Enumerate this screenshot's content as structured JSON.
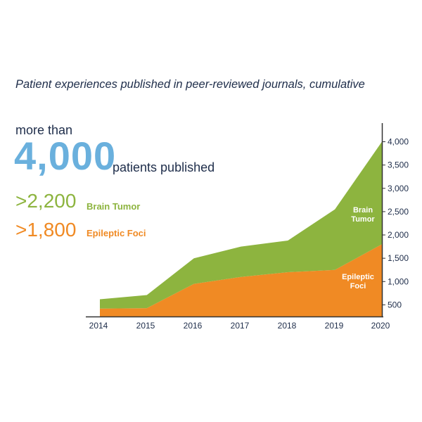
{
  "chart_data": {
    "type": "area",
    "title": "Patient experiences published in peer-reviewed journals, cumulative",
    "xlabel": "",
    "ylabel": "",
    "x": [
      "2014",
      "2015",
      "2016",
      "2017",
      "2018",
      "2019",
      "2020"
    ],
    "ylim": [
      250,
      4400
    ],
    "y_ticks": [
      "500",
      "1,000",
      "1,500",
      "2,000",
      "2,500",
      "3,000",
      "3,500",
      "4,000"
    ],
    "y_tick_values": [
      500,
      1000,
      1500,
      2000,
      2500,
      3000,
      3500,
      4000
    ],
    "y_axis_position": "right",
    "grid": false,
    "stacked": true,
    "series": [
      {
        "name": "Epileptic Foci",
        "color": "#f08a24",
        "values": [
          420,
          430,
          950,
          1100,
          1200,
          1250,
          1800
        ]
      },
      {
        "name": "Brain Tumor",
        "color": "#8db43f",
        "values": [
          200,
          280,
          550,
          650,
          680,
          1300,
          2200
        ]
      }
    ],
    "series_labels": [
      {
        "series": "Brain Tumor",
        "lines": [
          "Brain",
          "Tumor"
        ]
      },
      {
        "series": "Epileptic Foci",
        "lines": [
          "Epileptic",
          "Foci"
        ]
      }
    ]
  },
  "callout": {
    "prefix": "more than",
    "total": "4,000",
    "suffix": "patients published",
    "total_color": "#6ab0dd",
    "stats": [
      {
        "value": ">2,200",
        "label": "Brain Tumor",
        "color": "#8db43f"
      },
      {
        "value": ">1,800",
        "label": "Epileptic Foci",
        "color": "#f08a24"
      }
    ]
  }
}
